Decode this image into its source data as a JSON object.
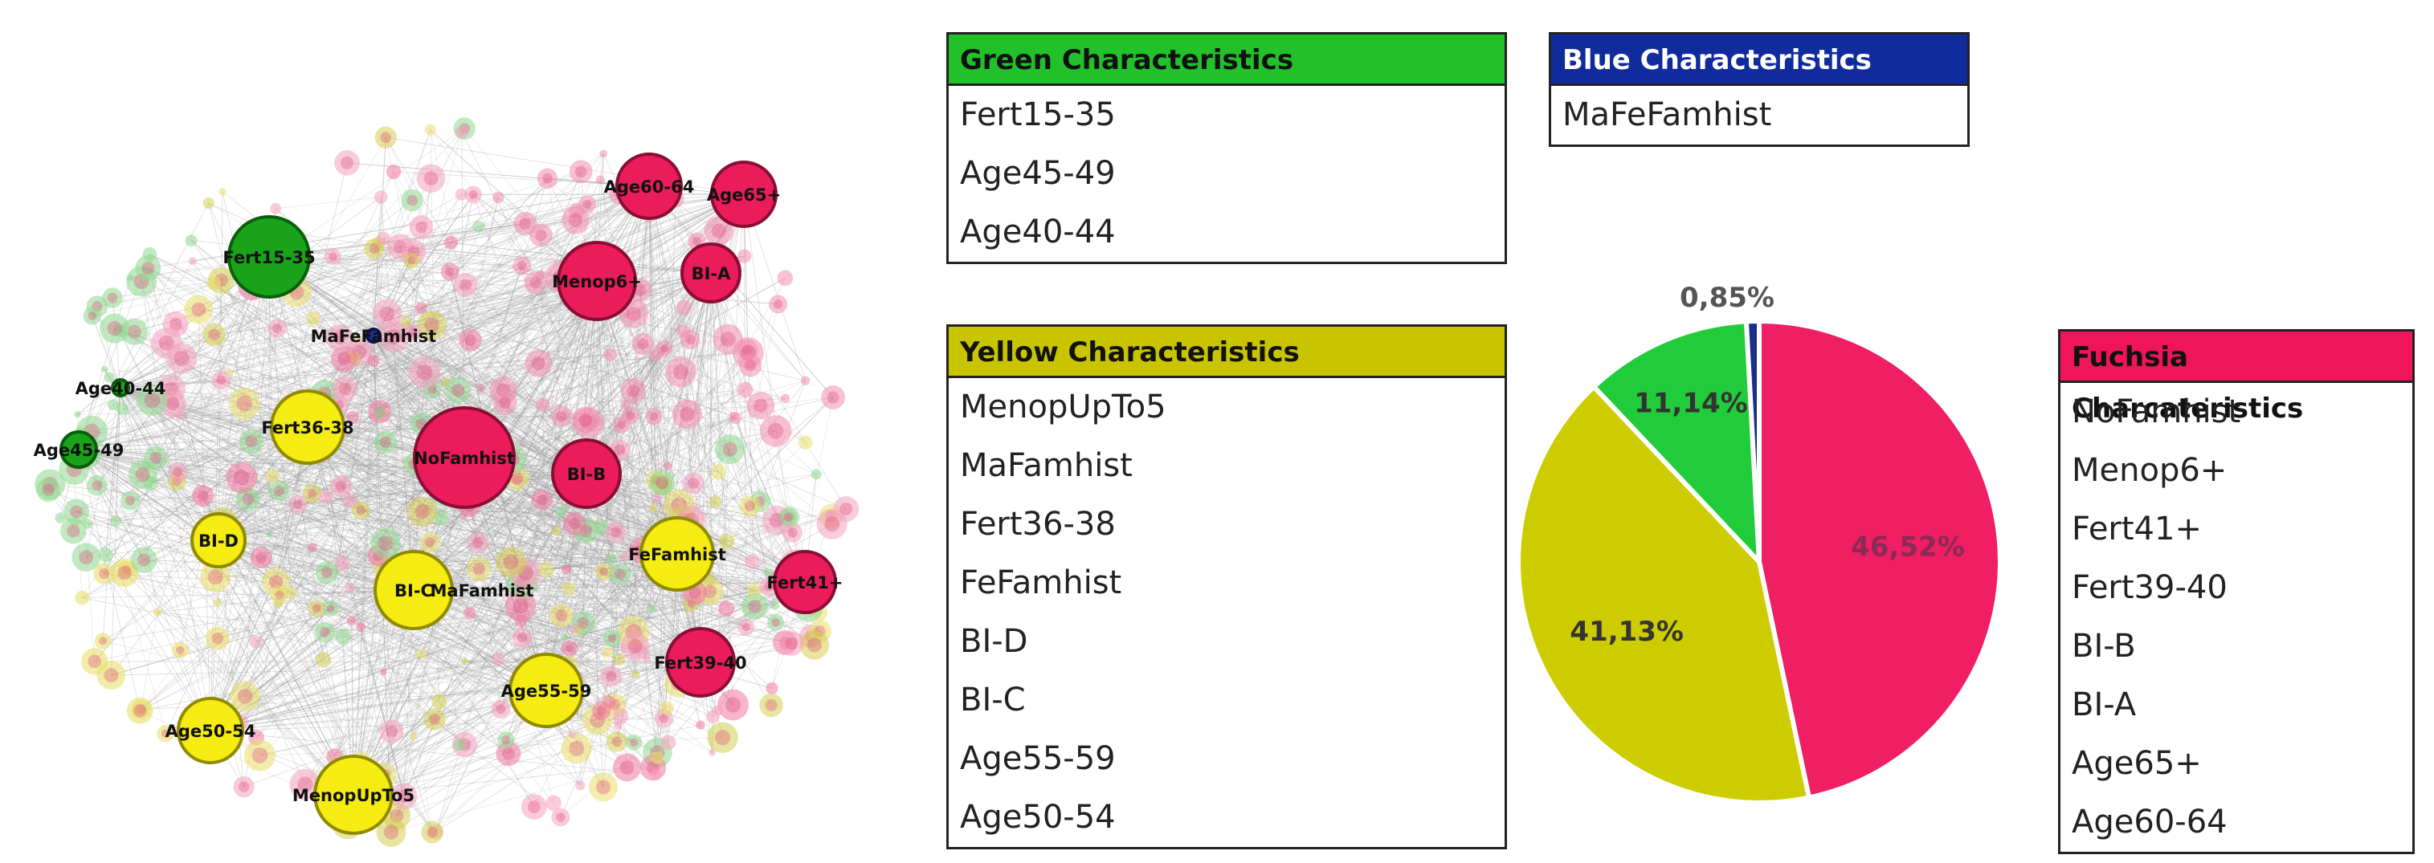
{
  "network": {
    "nodes": [
      {
        "label": "Fert15-35",
        "group": "green"
      },
      {
        "label": "Age40-44",
        "group": "green"
      },
      {
        "label": "Age45-49",
        "group": "green"
      },
      {
        "label": "MaFeFamhist",
        "group": "blue"
      },
      {
        "label": "Fert36-38",
        "group": "yellow"
      },
      {
        "label": "BI-D",
        "group": "yellow"
      },
      {
        "label": "BI-C",
        "group": "yellow"
      },
      {
        "label": "MaFamhist",
        "group": "yellow"
      },
      {
        "label": "FeFamhist",
        "group": "yellow"
      },
      {
        "label": "Age55-59",
        "group": "yellow"
      },
      {
        "label": "Age50-54",
        "group": "yellow"
      },
      {
        "label": "MenopUpTo5",
        "group": "yellow"
      },
      {
        "label": "Age60-64",
        "group": "fuchsia"
      },
      {
        "label": "Age65+",
        "group": "fuchsia"
      },
      {
        "label": "Menop6+",
        "group": "fuchsia"
      },
      {
        "label": "BI-A",
        "group": "fuchsia"
      },
      {
        "label": "NoFamhist",
        "group": "fuchsia"
      },
      {
        "label": "BI-B",
        "group": "fuchsia"
      },
      {
        "label": "Fert41+",
        "group": "fuchsia"
      },
      {
        "label": "Fert39-40",
        "group": "fuchsia"
      }
    ]
  },
  "legends": {
    "green": {
      "title": "Green Characteristics",
      "color": "#22c02a",
      "items": [
        "Fert15-35",
        "Age45-49",
        "Age40-44"
      ]
    },
    "blue": {
      "title": "Blue Characteristics",
      "color": "#102c9c",
      "items": [
        "MaFeFamhist"
      ]
    },
    "yellow": {
      "title": "Yellow Characteristics",
      "color": "#c8c400",
      "items": [
        "MenopUpTo5",
        "MaFamhist",
        "Fert36-38",
        "FeFamhist",
        "BI-D",
        "BI-C",
        "Age55-59",
        "Age50-54"
      ]
    },
    "fuchsia": {
      "title": "Fuchsia Charcateristics",
      "color": "#f0145a",
      "items": [
        "NoFamhist",
        "Menop6+",
        "Fert41+",
        "Fert39-40",
        "BI-B",
        "BI-A",
        "Age65+",
        "Age60-64"
      ]
    }
  },
  "chart_data": {
    "type": "pie",
    "slices": [
      {
        "label": "46,52%",
        "value": 46.52,
        "color": "#f01e62"
      },
      {
        "label": "41,13%",
        "value": 41.13,
        "color": "#cccc00"
      },
      {
        "label": "11,14%",
        "value": 11.14,
        "color": "#20cc3a"
      },
      {
        "label": "0,85%",
        "value": 0.85,
        "color": "#1a2e8a"
      }
    ]
  }
}
